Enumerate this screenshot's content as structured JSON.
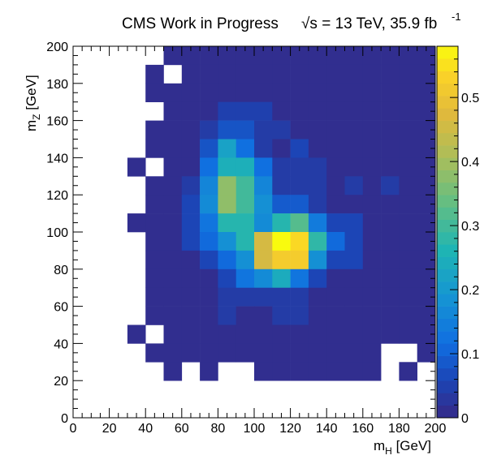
{
  "chart_data": {
    "type": "heatmap",
    "title": "CMS Work in Progress",
    "energy_label": "√s = 13 TeV, 35.9 fb",
    "energy_superscript": "-1",
    "xlabel_main": "m",
    "xlabel_sub": "H",
    "xlabel_unit": " [GeV]",
    "ylabel_main": "m",
    "ylabel_sub": "Z",
    "ylabel_unit": " [GeV]",
    "xlim": [
      0,
      200
    ],
    "ylim": [
      0,
      200
    ],
    "bin_width": 10,
    "x_ticks": [
      "0",
      "20",
      "40",
      "60",
      "80",
      "100",
      "120",
      "140",
      "160",
      "180",
      "200"
    ],
    "y_ticks": [
      "0",
      "20",
      "40",
      "60",
      "80",
      "100",
      "120",
      "140",
      "160",
      "180",
      "200"
    ],
    "colorbar_range": [
      0,
      0.58
    ],
    "colorbar_ticks": [
      "0",
      "0.1",
      "0.2",
      "0.3",
      "0.4",
      "0.5"
    ],
    "colorbar_tick_values": [
      0,
      0.1,
      0.2,
      0.3,
      0.4,
      0.5
    ],
    "grid": false,
    "x_bin_centers": [
      5,
      15,
      25,
      35,
      45,
      55,
      65,
      75,
      85,
      95,
      105,
      115,
      125,
      135,
      145,
      155,
      165,
      175,
      185,
      195
    ],
    "y_bin_centers": [
      195,
      185,
      175,
      165,
      155,
      145,
      135,
      125,
      115,
      105,
      95,
      85,
      75,
      65,
      55,
      45,
      35,
      25,
      15,
      5
    ],
    "z": [
      [
        0,
        0,
        0,
        0,
        0,
        0.01,
        0.01,
        0.01,
        0.01,
        0.01,
        0.01,
        0.01,
        0.01,
        0.01,
        0.01,
        0.01,
        0.01,
        0.01,
        0.01,
        0.01
      ],
      [
        0,
        0,
        0,
        0,
        0.01,
        0,
        0.01,
        0.01,
        0.01,
        0.01,
        0.01,
        0.01,
        0.01,
        0.01,
        0.01,
        0.01,
        0.01,
        0.01,
        0.01,
        0.01
      ],
      [
        0,
        0,
        0,
        0,
        0.01,
        0.01,
        0.01,
        0.01,
        0.01,
        0.01,
        0.01,
        0.01,
        0.01,
        0.01,
        0.01,
        0.01,
        0.01,
        0.01,
        0.01,
        0.01
      ],
      [
        0,
        0,
        0,
        0,
        0,
        0.01,
        0.01,
        0.01,
        0.05,
        0.05,
        0.05,
        0.01,
        0.01,
        0.01,
        0.01,
        0.01,
        0.01,
        0.01,
        0.01,
        0.01
      ],
      [
        0,
        0,
        0,
        0,
        0.01,
        0.01,
        0.01,
        0.04,
        0.08,
        0.08,
        0.04,
        0.04,
        0.01,
        0.01,
        0.01,
        0.01,
        0.01,
        0.01,
        0.01,
        0.01
      ],
      [
        0,
        0,
        0,
        0,
        0.01,
        0.01,
        0.01,
        0.08,
        0.22,
        0.12,
        0.04,
        0.01,
        0.06,
        0.01,
        0.01,
        0.01,
        0.01,
        0.01,
        0.01,
        0.01
      ],
      [
        0,
        0,
        0,
        0.01,
        0,
        0.01,
        0.01,
        0.12,
        0.25,
        0.25,
        0.12,
        0.04,
        0.04,
        0.04,
        0.01,
        0.01,
        0.01,
        0.01,
        0.01,
        0.01
      ],
      [
        0,
        0,
        0,
        0,
        0.01,
        0.01,
        0.04,
        0.16,
        0.38,
        0.3,
        0.16,
        0.04,
        0.04,
        0.04,
        0.01,
        0.04,
        0.01,
        0.04,
        0.01,
        0.01
      ],
      [
        0,
        0,
        0,
        0,
        0.01,
        0.01,
        0.06,
        0.17,
        0.38,
        0.3,
        0.18,
        0.09,
        0.09,
        0.04,
        0.01,
        0.01,
        0.01,
        0.01,
        0.01,
        0.01
      ],
      [
        0,
        0,
        0,
        0.01,
        0.01,
        0.01,
        0.06,
        0.13,
        0.27,
        0.27,
        0.17,
        0.27,
        0.32,
        0.14,
        0.06,
        0.06,
        0.01,
        0.01,
        0.01,
        0.01
      ],
      [
        0,
        0,
        0,
        0,
        0.01,
        0.01,
        0.06,
        0.11,
        0.18,
        0.27,
        0.46,
        0.58,
        0.54,
        0.28,
        0.11,
        0.06,
        0.01,
        0.01,
        0.01,
        0.01
      ],
      [
        0,
        0,
        0,
        0,
        0.01,
        0.01,
        0.01,
        0.06,
        0.11,
        0.18,
        0.46,
        0.52,
        0.52,
        0.18,
        0.06,
        0.06,
        0.01,
        0.01,
        0.01,
        0.01
      ],
      [
        0,
        0,
        0,
        0,
        0.01,
        0.01,
        0.01,
        0.01,
        0.06,
        0.13,
        0.17,
        0.24,
        0.13,
        0.06,
        0.01,
        0.01,
        0.01,
        0.01,
        0.01,
        0.01
      ],
      [
        0,
        0,
        0,
        0,
        0.01,
        0.01,
        0.01,
        0.01,
        0.04,
        0.04,
        0.04,
        0.04,
        0.04,
        0.01,
        0.01,
        0.01,
        0.01,
        0.01,
        0.01,
        0.01
      ],
      [
        0,
        0,
        0,
        0,
        0.01,
        0.01,
        0.01,
        0.01,
        0.04,
        0.01,
        0.01,
        0.04,
        0.04,
        0.01,
        0.01,
        0.01,
        0.01,
        0.01,
        0.01,
        0.01
      ],
      [
        0,
        0,
        0,
        0.01,
        0,
        0.01,
        0.01,
        0.01,
        0.01,
        0.01,
        0.01,
        0.01,
        0.01,
        0.01,
        0.01,
        0.01,
        0.01,
        0.01,
        0.01,
        0.01
      ],
      [
        0,
        0,
        0,
        0,
        0.01,
        0.01,
        0.01,
        0.01,
        0.01,
        0.01,
        0.01,
        0.01,
        0.01,
        0.01,
        0.01,
        0.01,
        0.01,
        0,
        0,
        0.01
      ],
      [
        0,
        0,
        0,
        0,
        0,
        0.01,
        0,
        0.01,
        0,
        0,
        0.01,
        0.01,
        0.01,
        0.01,
        0.01,
        0.01,
        0.01,
        0,
        0.01,
        0
      ],
      [
        0,
        0,
        0,
        0,
        0,
        0,
        0,
        0,
        0,
        0,
        0,
        0,
        0,
        0,
        0,
        0,
        0,
        0,
        0,
        0
      ],
      [
        0,
        0,
        0,
        0,
        0,
        0,
        0,
        0,
        0,
        0,
        0,
        0,
        0,
        0,
        0,
        0,
        0,
        0,
        0,
        0
      ]
    ]
  }
}
